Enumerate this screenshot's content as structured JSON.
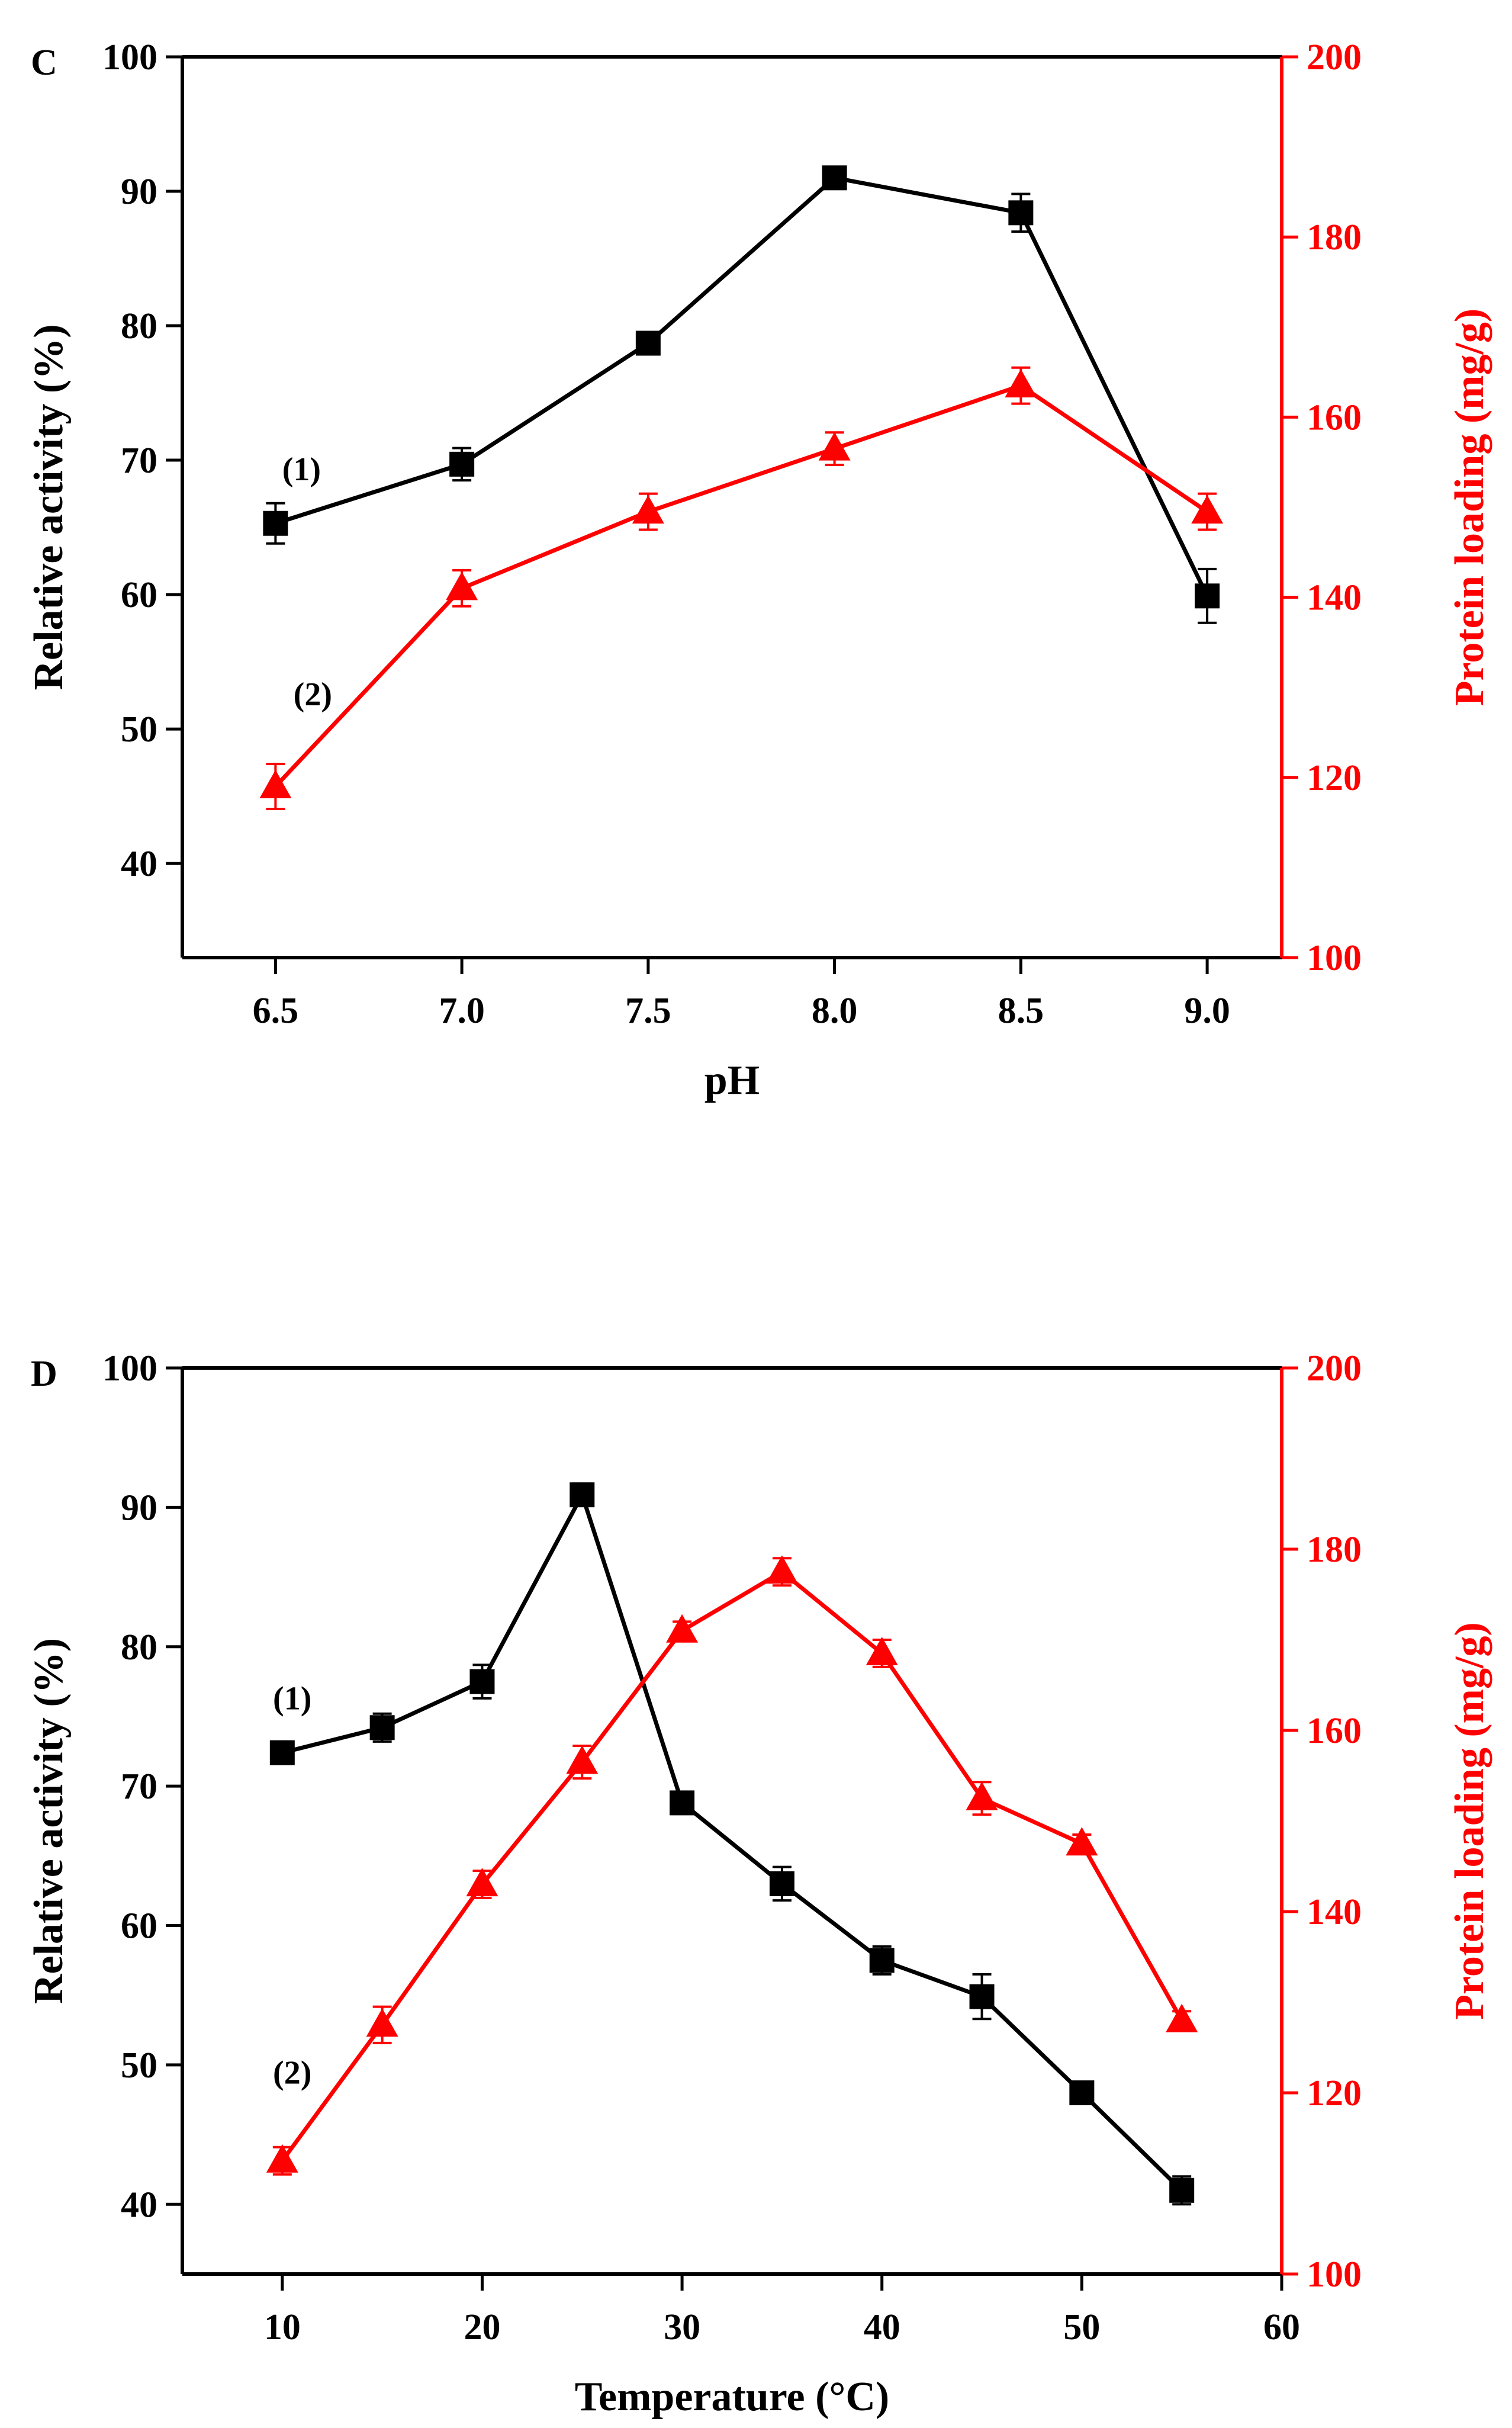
{
  "colors": {
    "series1": "#000000",
    "series2": "#ff0000",
    "axis_left": "#000000",
    "axis_right": "#ff0000",
    "background": "#ffffff"
  },
  "chart_data": [
    {
      "id": "C",
      "type": "line",
      "panel_label": "C",
      "xlabel": "pH",
      "ylabel": "Relative activity (%)",
      "y2label": "Protein loading (mg/g)",
      "xlim": [
        6.25,
        9.2
      ],
      "ylim": [
        33,
        100
      ],
      "y2lim": [
        100,
        200
      ],
      "xticks": [
        6.5,
        7.0,
        7.5,
        8.0,
        8.5,
        9.0
      ],
      "xtick_labels": [
        "6.5",
        "7.0",
        "7.5",
        "8.0",
        "8.5",
        "9.0"
      ],
      "yticks": [
        40,
        50,
        60,
        70,
        80,
        90,
        100
      ],
      "ytick_labels": [
        "40",
        "50",
        "60",
        "70",
        "80",
        "90",
        "100"
      ],
      "y2ticks": [
        100,
        120,
        140,
        160,
        180,
        200
      ],
      "y2tick_labels": [
        "100",
        "120",
        "140",
        "160",
        "180",
        "200"
      ],
      "series": [
        {
          "name": "(1)",
          "axis": "left",
          "marker": "square",
          "label_at": {
            "x": 6.57,
            "y": 68.5
          },
          "x": [
            6.5,
            7.0,
            7.5,
            8.0,
            8.5,
            9.0
          ],
          "values": [
            65.3,
            69.7,
            78.7,
            91.0,
            88.4,
            59.9
          ],
          "errors": [
            1.5,
            1.2,
            0.8,
            0.5,
            1.4,
            2.0
          ]
        },
        {
          "name": "(2)",
          "axis": "right",
          "marker": "triangle",
          "label_at": {
            "x": 6.6,
            "y2": 128
          },
          "x": [
            6.5,
            7.0,
            7.5,
            8.0,
            8.5,
            9.0
          ],
          "values": [
            119,
            141,
            149.5,
            156.5,
            163.5,
            149.5
          ],
          "errors": [
            2.5,
            2.0,
            2.0,
            1.8,
            2.0,
            2.0
          ]
        }
      ]
    },
    {
      "id": "D",
      "type": "line",
      "panel_label": "D",
      "xlabel": "Temperature (°C)",
      "ylabel": "Relative activity (%)",
      "y2label": "Protein loading (mg/g)",
      "xlim": [
        5,
        60
      ],
      "ylim": [
        35,
        100
      ],
      "y2lim": [
        100,
        200
      ],
      "xticks": [
        10,
        20,
        30,
        40,
        50,
        60
      ],
      "xtick_labels": [
        "10",
        "20",
        "30",
        "40",
        "50",
        "60"
      ],
      "yticks": [
        40,
        50,
        60,
        70,
        80,
        90,
        100
      ],
      "ytick_labels": [
        "40",
        "50",
        "60",
        "70",
        "80",
        "90",
        "100"
      ],
      "y2ticks": [
        100,
        120,
        140,
        160,
        180,
        200
      ],
      "y2tick_labels": [
        "100",
        "120",
        "140",
        "160",
        "180",
        "200"
      ],
      "series": [
        {
          "name": "(1)",
          "axis": "left",
          "marker": "square",
          "label_at": {
            "x": 10.5,
            "y": 75.5
          },
          "x": [
            10,
            15,
            20,
            25,
            30,
            35,
            40,
            45,
            50,
            55
          ],
          "values": [
            72.4,
            74.2,
            77.5,
            90.9,
            68.8,
            63.0,
            57.5,
            54.9,
            48.0,
            41.0
          ],
          "errors": [
            0.8,
            1.0,
            1.2,
            0.8,
            0.5,
            1.2,
            1.0,
            1.6,
            0.5,
            1.0
          ]
        },
        {
          "name": "(2)",
          "axis": "right",
          "marker": "triangle",
          "label_at": {
            "x": 10.5,
            "y2": 121
          },
          "x": [
            10,
            15,
            20,
            25,
            30,
            35,
            40,
            45,
            50,
            55
          ],
          "values": [
            112.5,
            127.5,
            143,
            156.5,
            171,
            177.5,
            168.5,
            152.5,
            147.5,
            128
          ],
          "errors": [
            1.5,
            2.0,
            1.5,
            1.8,
            1.0,
            1.5,
            1.5,
            1.8,
            1.0,
            1.0
          ]
        }
      ]
    }
  ]
}
